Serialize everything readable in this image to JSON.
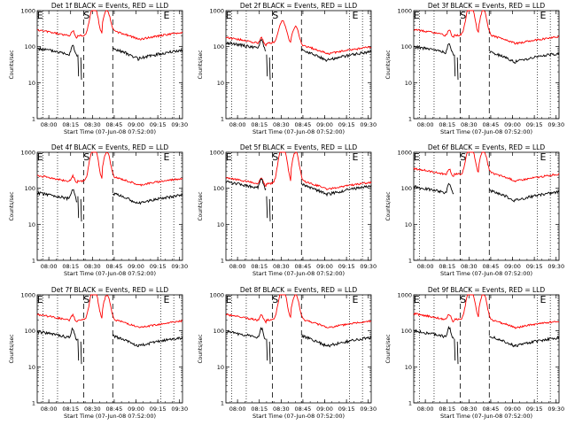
{
  "chart_data": [
    {
      "type": "line",
      "title": "Det 1f BLACK = Events, RED = LLD",
      "xlabel": "Start Time (07-Jun-08 07:52:00)",
      "ylabel": "Counts/sec",
      "yscale": "log",
      "ylim": [
        1,
        1000
      ],
      "y_ticks": [
        "1",
        "10",
        "100",
        "1000"
      ],
      "x_ticks": [
        "08:00",
        "08:15",
        "08:30",
        "08:45",
        "09:00",
        "09:15",
        "09:30"
      ],
      "marker_labels": [
        "E",
        "S",
        "E"
      ],
      "series": [
        {
          "color": "#000000",
          "profile": "events"
        },
        {
          "color": "#ff0000",
          "profile": "lld"
        }
      ]
    },
    {
      "type": "line",
      "title": "Det 2f BLACK = Events, RED = LLD",
      "xlabel": "Start Time (07-Jun-08 07:52:00)",
      "ylabel": "Counts/sec",
      "yscale": "log",
      "ylim": [
        1,
        1000
      ],
      "y_ticks": [
        "1",
        "10",
        "100",
        "1000"
      ],
      "x_ticks": [
        "08:00",
        "08:15",
        "08:30",
        "08:45",
        "09:00",
        "09:15",
        "09:30"
      ],
      "marker_labels": [
        "E",
        "S",
        "E"
      ],
      "series": [
        {
          "color": "#000000",
          "profile": "events"
        },
        {
          "color": "#ff0000",
          "profile": "lld"
        }
      ]
    },
    {
      "type": "line",
      "title": "Det 3f BLACK = Events, RED = LLD",
      "xlabel": "Start Time (07-Jun-08 07:52:00)",
      "ylabel": "Counts/sec",
      "yscale": "log",
      "ylim": [
        1,
        1000
      ],
      "y_ticks": [
        "1",
        "10",
        "100",
        "1000"
      ],
      "x_ticks": [
        "08:00",
        "08:15",
        "08:30",
        "08:45",
        "09:00",
        "09:15",
        "09:30"
      ],
      "marker_labels": [
        "E",
        "S",
        "E"
      ],
      "series": [
        {
          "color": "#000000",
          "profile": "events"
        },
        {
          "color": "#ff0000",
          "profile": "lld"
        }
      ]
    },
    {
      "type": "line",
      "title": "Det 4f BLACK = Events, RED = LLD",
      "xlabel": "Start Time (07-Jun-08 07:52:00)",
      "ylabel": "Counts/sec",
      "yscale": "log",
      "ylim": [
        1,
        1000
      ],
      "y_ticks": [
        "1",
        "10",
        "100",
        "1000"
      ],
      "x_ticks": [
        "08:00",
        "08:15",
        "08:30",
        "08:45",
        "09:00",
        "09:15",
        "09:30"
      ],
      "marker_labels": [
        "E",
        "S",
        "E"
      ],
      "series": [
        {
          "color": "#000000",
          "profile": "events"
        },
        {
          "color": "#ff0000",
          "profile": "lld"
        }
      ]
    },
    {
      "type": "line",
      "title": "Det 5f BLACK = Events, RED = LLD",
      "xlabel": "Start Time (07-Jun-08 07:52:00)",
      "ylabel": "Counts/sec",
      "yscale": "log",
      "ylim": [
        1,
        1000
      ],
      "y_ticks": [
        "1",
        "10",
        "100",
        "1000"
      ],
      "x_ticks": [
        "08:00",
        "08:15",
        "08:30",
        "08:45",
        "09:00",
        "09:15",
        "09:30"
      ],
      "marker_labels": [
        "E",
        "S",
        "E"
      ],
      "series": [
        {
          "color": "#000000",
          "profile": "events"
        },
        {
          "color": "#ff0000",
          "profile": "lld"
        }
      ]
    },
    {
      "type": "line",
      "title": "Det 6f BLACK = Events, RED = LLD",
      "xlabel": "Start Time (07-Jun-08 07:52:00)",
      "ylabel": "Counts/sec",
      "yscale": "log",
      "ylim": [
        1,
        1000
      ],
      "y_ticks": [
        "1",
        "10",
        "100",
        "1000"
      ],
      "x_ticks": [
        "08:00",
        "08:15",
        "08:30",
        "08:45",
        "09:00",
        "09:15",
        "09:30"
      ],
      "marker_labels": [
        "E",
        "S",
        "E"
      ],
      "series": [
        {
          "color": "#000000",
          "profile": "events"
        },
        {
          "color": "#ff0000",
          "profile": "lld"
        }
      ]
    },
    {
      "type": "line",
      "title": "Det 7f BLACK = Events, RED = LLD",
      "xlabel": "Start Time (07-Jun-08 07:52:00)",
      "ylabel": "Counts/sec",
      "yscale": "log",
      "ylim": [
        1,
        1000
      ],
      "y_ticks": [
        "1",
        "10",
        "100",
        "1000"
      ],
      "x_ticks": [
        "08:00",
        "08:15",
        "08:30",
        "08:45",
        "09:00",
        "09:15",
        "09:30"
      ],
      "marker_labels": [
        "E",
        "S",
        "E"
      ],
      "series": [
        {
          "color": "#000000",
          "profile": "events"
        },
        {
          "color": "#ff0000",
          "profile": "lld"
        }
      ]
    },
    {
      "type": "line",
      "title": "Det 8f BLACK = Events, RED = LLD",
      "xlabel": "Start Time (07-Jun-08 07:52:00)",
      "ylabel": "Counts/sec",
      "yscale": "log",
      "ylim": [
        1,
        1000
      ],
      "y_ticks": [
        "1",
        "10",
        "100",
        "1000"
      ],
      "x_ticks": [
        "08:00",
        "08:15",
        "08:30",
        "08:45",
        "09:00",
        "09:15",
        "09:30"
      ],
      "marker_labels": [
        "E",
        "S",
        "E"
      ],
      "series": [
        {
          "color": "#000000",
          "profile": "events"
        },
        {
          "color": "#ff0000",
          "profile": "lld"
        }
      ]
    },
    {
      "type": "line",
      "title": "Det 9f BLACK = Events, RED = LLD",
      "xlabel": "Start Time (07-Jun-08 07:52:00)",
      "ylabel": "Counts/sec",
      "yscale": "log",
      "ylim": [
        1,
        1000
      ],
      "y_ticks": [
        "1",
        "10",
        "100",
        "1000"
      ],
      "x_ticks": [
        "08:00",
        "08:15",
        "08:30",
        "08:45",
        "09:00",
        "09:15",
        "09:30"
      ],
      "marker_labels": [
        "E",
        "S",
        "E"
      ],
      "series": [
        {
          "color": "#000000",
          "profile": "events"
        },
        {
          "color": "#ff0000",
          "profile": "lld"
        }
      ]
    }
  ]
}
